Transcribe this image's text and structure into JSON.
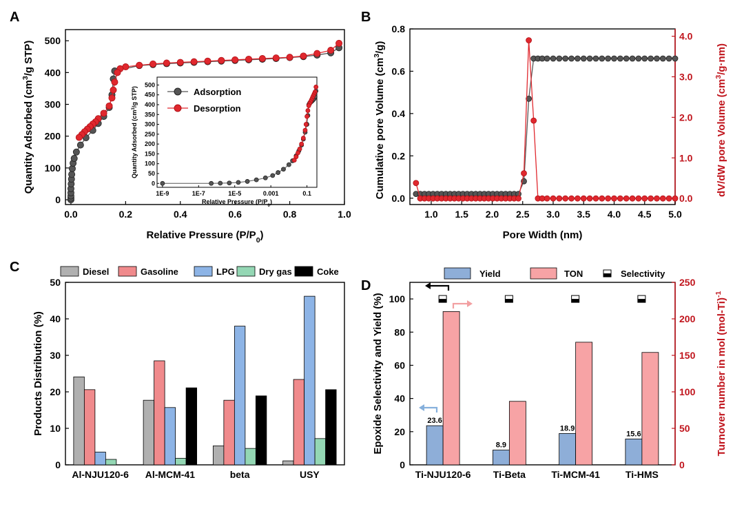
{
  "panels": {
    "a": "A",
    "b": "B",
    "c": "C",
    "d": "D"
  },
  "colors": {
    "adsorption": "#555555",
    "desorption": "#e0282e",
    "right_axis_red": "#c0141c",
    "diesel": "#b0b0b0",
    "gasoline": "#f08a8c",
    "lpg": "#8db4e6",
    "drygas": "#94d7b4",
    "coke": "#000000",
    "yield": "#8eaed8",
    "ton": "#f7a3a5",
    "arrow_black": "#000000",
    "arrow_blue": "#86b0dc",
    "arrow_pink": "#f2a0a2"
  },
  "chart_data": [
    {
      "panel": "A",
      "type": "line",
      "xlabel": "Relative Pressure (P/P",
      "xlabel_sub": "0",
      "xlabel_end": ")",
      "ylabel": "Quantity Adsorbed (cm",
      "ylabel_sup": "3",
      "ylabel_end": "/g STP)",
      "xlim": [
        -0.02,
        1.0
      ],
      "ylim": [
        -15,
        535
      ],
      "xticks": [
        "0.0",
        "0.2",
        "0.4",
        "0.6",
        "0.8",
        "1.0"
      ],
      "yticks": [
        "0",
        "100",
        "200",
        "300",
        "400",
        "500"
      ],
      "series": [
        {
          "name": "Adsorption",
          "x": [
            0.0,
            0.0,
            0.0,
            0.0,
            0.0,
            0.001,
            0.002,
            0.003,
            0.005,
            0.008,
            0.012,
            0.02,
            0.035,
            0.055,
            0.08,
            0.1,
            0.12,
            0.14,
            0.15,
            0.155,
            0.16,
            0.25,
            0.3,
            0.35,
            0.4,
            0.45,
            0.5,
            0.55,
            0.6,
            0.65,
            0.7,
            0.75,
            0.8,
            0.85,
            0.9,
            0.95,
            0.98
          ],
          "y": [
            0,
            5,
            12,
            22,
            35,
            50,
            65,
            80,
            98,
            115,
            130,
            150,
            172,
            195,
            218,
            240,
            262,
            290,
            330,
            380,
            405,
            422,
            425,
            428,
            430,
            432,
            434,
            436,
            438,
            440,
            442,
            444,
            447,
            450,
            455,
            462,
            478
          ]
        },
        {
          "name": "Desorption",
          "x": [
            0.98,
            0.95,
            0.9,
            0.85,
            0.8,
            0.75,
            0.7,
            0.65,
            0.6,
            0.55,
            0.5,
            0.45,
            0.4,
            0.35,
            0.3,
            0.25,
            0.2,
            0.18,
            0.17,
            0.16,
            0.155,
            0.15,
            0.14,
            0.12,
            0.1,
            0.09,
            0.08,
            0.07,
            0.06,
            0.05,
            0.04,
            0.03
          ],
          "y": [
            492,
            470,
            460,
            452,
            448,
            446,
            444,
            442,
            440,
            438,
            436,
            434,
            432,
            430,
            427,
            423,
            418,
            412,
            400,
            370,
            345,
            320,
            295,
            272,
            255,
            245,
            238,
            230,
            222,
            214,
            205,
            196
          ]
        }
      ],
      "inset": {
        "xlabel": "Relative Pressure (P/P",
        "xlabel_sub": "0",
        "xlabel_end": ")",
        "ylabel": "Quantity Adsorbed (cm",
        "ylabel_sup": "3",
        "ylabel_end": "/g STP)",
        "log_x": true,
        "xlim_log10": [
          -9.3,
          -0.45
        ],
        "ylim": [
          -20,
          540
        ],
        "xticks": [
          {
            "label": "1E-9",
            "log10": -9
          },
          {
            "label": "1E-7",
            "log10": -7
          },
          {
            "label": "1E-5",
            "log10": -5
          },
          {
            "label": "0.001",
            "log10": -3
          },
          {
            "label": "0.1",
            "log10": -1
          }
        ],
        "yticks": [
          "0",
          "50",
          "100",
          "150",
          "200",
          "250",
          "300",
          "350",
          "400",
          "450",
          "500"
        ],
        "series": [
          {
            "name": "Adsorption",
            "log10x": [
              -9.0,
              -6.3,
              -5.8,
              -5.3,
              -4.8,
              -4.3,
              -3.8,
              -3.3,
              -2.9,
              -2.6,
              -2.3,
              -2.0,
              -1.8,
              -1.6,
              -1.45,
              -1.3,
              -1.2,
              -1.1,
              -1.0,
              -0.95,
              -0.9,
              -0.85,
              -0.8,
              -0.75,
              -0.7,
              -0.65,
              -0.6,
              -0.55,
              -0.5
            ],
            "y": [
              0,
              0,
              1,
              2,
              5,
              10,
              18,
              28,
              40,
              55,
              72,
              95,
              115,
              140,
              165,
              195,
              225,
              260,
              300,
              345,
              400,
              408,
              412,
              416,
              420,
              425,
              430,
              440,
              470
            ]
          },
          {
            "name": "Desorption",
            "log10x": [
              -0.5,
              -0.55,
              -0.6,
              -0.65,
              -0.7,
              -0.75,
              -0.8,
              -0.85,
              -0.9,
              -0.95,
              -1.0,
              -1.05,
              -1.1,
              -1.2,
              -1.3,
              -1.4,
              -1.5,
              -1.6,
              -1.7
            ],
            "y": [
              490,
              465,
              455,
              445,
              435,
              425,
              415,
              405,
              395,
              370,
              340,
              300,
              270,
              230,
              200,
              175,
              155,
              135,
              118
            ]
          }
        ]
      }
    },
    {
      "panel": "B",
      "type": "line",
      "xlabel": "Pore Width (nm)",
      "ylabel_left": "Cumulative pore Volume (cm",
      "ylabel_left_sup": "3",
      "ylabel_left_end": "/g)",
      "ylabel_right": "dV/dW pore Volume (cm",
      "ylabel_right_sup": "3",
      "ylabel_right_end": "/g·nm)",
      "xlim": [
        0.65,
        5.0
      ],
      "ylim_left": [
        -0.03,
        0.8
      ],
      "ylim_right": [
        -0.15,
        4.18
      ],
      "xticks": [
        "1.0",
        "1.5",
        "2.0",
        "2.5",
        "3.0",
        "3.5",
        "4.0",
        "4.5",
        "5.0"
      ],
      "yticks_left": [
        "0.0",
        "0.2",
        "0.4",
        "0.6",
        "0.8"
      ],
      "yticks_right": [
        "0.0",
        "1.0",
        "2.0",
        "3.0",
        "4.0"
      ],
      "series": [
        {
          "name": "Cumulative",
          "axis": "left",
          "x": [
            0.75,
            0.82,
            0.89,
            0.96,
            1.03,
            1.1,
            1.17,
            1.24,
            1.31,
            1.38,
            1.45,
            1.52,
            1.59,
            1.66,
            1.73,
            1.8,
            1.87,
            1.94,
            2.01,
            2.08,
            2.15,
            2.22,
            2.29,
            2.36,
            2.43,
            2.52,
            2.6,
            2.68,
            2.75,
            2.82,
            2.9,
            3.0,
            3.1,
            3.2,
            3.3,
            3.4,
            3.5,
            3.6,
            3.7,
            3.8,
            3.9,
            4.0,
            4.1,
            4.2,
            4.3,
            4.4,
            4.5,
            4.6,
            4.7,
            4.8,
            4.9,
            5.0
          ],
          "y": [
            0.02,
            0.02,
            0.02,
            0.02,
            0.02,
            0.02,
            0.02,
            0.02,
            0.02,
            0.02,
            0.02,
            0.02,
            0.02,
            0.02,
            0.02,
            0.02,
            0.02,
            0.02,
            0.02,
            0.02,
            0.02,
            0.02,
            0.02,
            0.02,
            0.02,
            0.08,
            0.47,
            0.66,
            0.66,
            0.66,
            0.66,
            0.66,
            0.66,
            0.66,
            0.66,
            0.66,
            0.66,
            0.66,
            0.66,
            0.66,
            0.66,
            0.66,
            0.66,
            0.66,
            0.66,
            0.66,
            0.66,
            0.66,
            0.66,
            0.66,
            0.66,
            0.66
          ]
        },
        {
          "name": "dV/dW",
          "axis": "right",
          "x": [
            0.75,
            0.82,
            0.89,
            0.96,
            1.03,
            1.1,
            1.17,
            1.24,
            1.31,
            1.38,
            1.45,
            1.52,
            1.59,
            1.66,
            1.73,
            1.8,
            1.87,
            1.94,
            2.01,
            2.08,
            2.15,
            2.22,
            2.29,
            2.36,
            2.43,
            2.52,
            2.6,
            2.68,
            2.75,
            2.82,
            2.9,
            3.0,
            3.1,
            3.2,
            3.3,
            3.4,
            3.5,
            3.6,
            3.7,
            3.8,
            3.9,
            4.0,
            4.1,
            4.2,
            4.3,
            4.4,
            4.5,
            4.6,
            4.7,
            4.8,
            4.9,
            5.0
          ],
          "y": [
            0.38,
            0.0,
            0.0,
            0.0,
            0.0,
            0.0,
            0.0,
            0.0,
            0.0,
            0.0,
            0.0,
            0.0,
            0.0,
            0.0,
            0.0,
            0.0,
            0.0,
            0.0,
            0.0,
            0.0,
            0.0,
            0.0,
            0.0,
            0.0,
            0.0,
            0.62,
            3.9,
            1.92,
            0.0,
            0.0,
            0.0,
            0.0,
            0.0,
            0.0,
            0.0,
            0.0,
            0.0,
            0.0,
            0.0,
            0.0,
            0.0,
            0.0,
            0.0,
            0.0,
            0.0,
            0.0,
            0.0,
            0.0,
            0.0,
            0.0,
            0.0,
            0.0
          ]
        }
      ]
    },
    {
      "panel": "C",
      "type": "bar",
      "ylabel": "Products Distribution (%)",
      "xlabel": "",
      "ylim": [
        0,
        50
      ],
      "yticks": [
        "0",
        "10",
        "20",
        "30",
        "40",
        "50"
      ],
      "categories": [
        "Al-NJU120-6",
        "Al-MCM-41",
        "beta",
        "USY"
      ],
      "series": [
        {
          "name": "Diesel",
          "values": [
            24.1,
            17.7,
            5.2,
            1.1
          ]
        },
        {
          "name": "Gasoline",
          "values": [
            20.6,
            28.5,
            17.7,
            23.4
          ]
        },
        {
          "name": "LPG",
          "values": [
            3.5,
            15.7,
            38.0,
            46.2
          ]
        },
        {
          "name": "Dry gas",
          "values": [
            1.5,
            1.8,
            4.5,
            7.2
          ]
        },
        {
          "name": "Coke",
          "values": [
            0.0,
            21.1,
            18.9,
            20.6
          ]
        }
      ]
    },
    {
      "panel": "D",
      "type": "bar",
      "ylabel_left": "Epoxide Selectivity and Yield (%)",
      "ylabel_right": "Turnover number in mol (mol-Ti)",
      "ylabel_right_sup": "-1",
      "ylim_left": [
        0,
        110
      ],
      "ylim_right": [
        0,
        250
      ],
      "yticks_left": [
        "0",
        "20",
        "40",
        "60",
        "80",
        "100"
      ],
      "yticks_right": [
        "0",
        "50",
        "100",
        "150",
        "200",
        "250"
      ],
      "categories": [
        "Ti-NJU120-6",
        "Ti-Beta",
        "Ti-MCM-41",
        "Ti-HMS"
      ],
      "series": [
        {
          "name": "Yield",
          "axis": "left",
          "values": [
            23.6,
            8.9,
            18.9,
            15.6
          ],
          "labels": [
            "23.6",
            "8.9",
            "18.9",
            "15.6"
          ]
        },
        {
          "name": "TON",
          "axis": "right",
          "values": [
            210,
            87,
            168,
            154
          ]
        },
        {
          "name": "Selectivity",
          "axis": "left",
          "values": [
            100,
            100,
            100,
            100
          ]
        }
      ]
    }
  ]
}
